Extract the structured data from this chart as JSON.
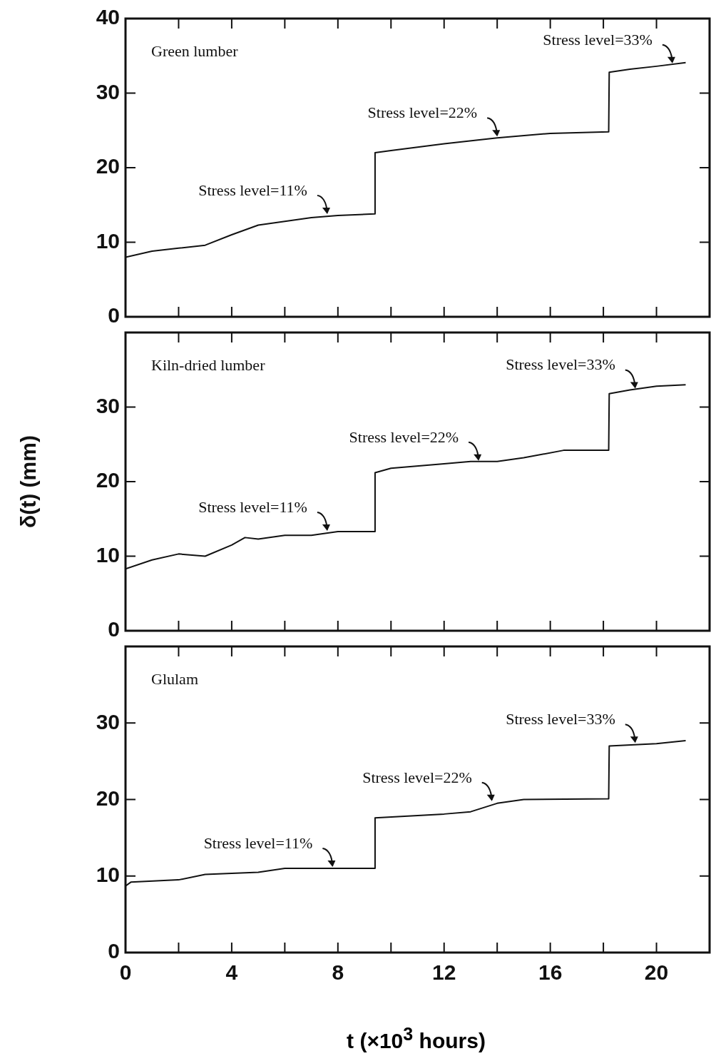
{
  "chart_data": [
    {
      "type": "line",
      "title": "Green lumber",
      "tick_labels": "y",
      "xlim": [
        0,
        22
      ],
      "ylim": [
        0,
        40
      ],
      "yticks": [
        0,
        10,
        20,
        30,
        40
      ],
      "xticks": [
        0,
        {
          "value": 2,
          "label": null
        },
        {
          "value": 4,
          "label": null
        },
        {
          "value": 6,
          "label": null
        },
        {
          "value": 8,
          "label": null
        },
        {
          "value": 10,
          "label": null
        },
        {
          "value": 12,
          "label": null
        },
        {
          "value": 14,
          "label": null
        },
        {
          "value": 16,
          "label": null
        },
        {
          "value": 18,
          "label": null
        },
        {
          "value": 20,
          "label": null
        }
      ],
      "grid": false,
      "legend": false,
      "marker": "none",
      "line_style": "solid",
      "series": [
        {
          "color": "#111111",
          "x": [
            0,
            1,
            2,
            3,
            4,
            5,
            6,
            7,
            8,
            9.38,
            9.4,
            10,
            12,
            14,
            16,
            18.2,
            18.22,
            19,
            20,
            21.1
          ],
          "values": [
            8,
            8.8,
            9.2,
            9.6,
            11,
            12.3,
            12.8,
            13.3,
            13.6,
            13.8,
            22,
            22.3,
            23.2,
            24,
            24.6,
            24.8,
            32.8,
            33.2,
            33.6,
            34.1
          ]
        }
      ],
      "annotations": [
        {
          "text": "Stress level=11%",
          "x": 7.6,
          "y": 13.6
        },
        {
          "text": "Stress level=22%",
          "x": 14,
          "y": 24
        },
        {
          "text": "Stress level=33%",
          "x": 20.6,
          "y": 33.8
        }
      ]
    },
    {
      "type": "line",
      "title": "Kiln-dried lumber",
      "tick_labels": "y",
      "ylabel": "δ(t) (mm)",
      "xlim": [
        0,
        22
      ],
      "ylim": [
        0,
        40
      ],
      "yticks": [
        0,
        10,
        20,
        30
      ],
      "xticks": [
        0,
        {
          "value": 2,
          "label": null
        },
        {
          "value": 4,
          "label": null
        },
        {
          "value": 6,
          "label": null
        },
        {
          "value": 8,
          "label": null
        },
        {
          "value": 10,
          "label": null
        },
        {
          "value": 12,
          "label": null
        },
        {
          "value": 14,
          "label": null
        },
        {
          "value": 16,
          "label": null
        },
        {
          "value": 18,
          "label": null
        },
        {
          "value": 20,
          "label": null
        }
      ],
      "grid": false,
      "legend": false,
      "marker": "none",
      "line_style": "solid",
      "series": [
        {
          "color": "#111111",
          "x": [
            0,
            1,
            2,
            3,
            4,
            4.5,
            5,
            6,
            7,
            8,
            9.38,
            9.4,
            10,
            12,
            13,
            14,
            15,
            16.5,
            18.2,
            18.22,
            19,
            20,
            21.1
          ],
          "values": [
            8.3,
            9.5,
            10.3,
            10,
            11.5,
            12.5,
            12.3,
            12.8,
            12.8,
            13.3,
            13.3,
            21.2,
            21.8,
            22.4,
            22.7,
            22.7,
            23.2,
            24.2,
            24.2,
            31.8,
            32.3,
            32.8,
            33
          ]
        }
      ],
      "annotations": [
        {
          "text": "Stress level=11%",
          "x": 7.6,
          "y": 13.2
        },
        {
          "text": "Stress level=22%",
          "x": 13.3,
          "y": 22.6
        },
        {
          "text": "Stress level=33%",
          "x": 19.2,
          "y": 32.3
        }
      ]
    },
    {
      "type": "line",
      "title": "Glulam",
      "xlabel": "t (×10$^{3}$ hours)",
      "xlim": [
        0,
        22
      ],
      "ylim": [
        0,
        40
      ],
      "yticks": [
        0,
        10,
        20,
        30
      ],
      "xticks": [
        0,
        {
          "value": 2,
          "label": null
        },
        4,
        {
          "value": 6,
          "label": null
        },
        8,
        {
          "value": 10,
          "label": null
        },
        12,
        {
          "value": 14,
          "label": null
        },
        16,
        {
          "value": 18,
          "label": null
        },
        20
      ],
      "grid": false,
      "legend": false,
      "marker": "none",
      "line_style": "solid",
      "series": [
        {
          "color": "#111111",
          "x": [
            0,
            0.2,
            2,
            3,
            5,
            6,
            8,
            9.38,
            9.4,
            12,
            13,
            14,
            15,
            18.2,
            18.22,
            20,
            21.1
          ],
          "values": [
            8.7,
            9.2,
            9.5,
            10.2,
            10.5,
            11,
            11,
            11,
            17.6,
            18.1,
            18.4,
            19.5,
            20,
            20.1,
            27,
            27.3,
            27.7
          ]
        }
      ],
      "annotations": [
        {
          "text": "Stress level=11%",
          "x": 7.8,
          "y": 11
        },
        {
          "text": "Stress level=22%",
          "x": 13.8,
          "y": 19.6
        },
        {
          "text": "Stress level=33%",
          "x": 19.2,
          "y": 27.2
        }
      ]
    }
  ]
}
